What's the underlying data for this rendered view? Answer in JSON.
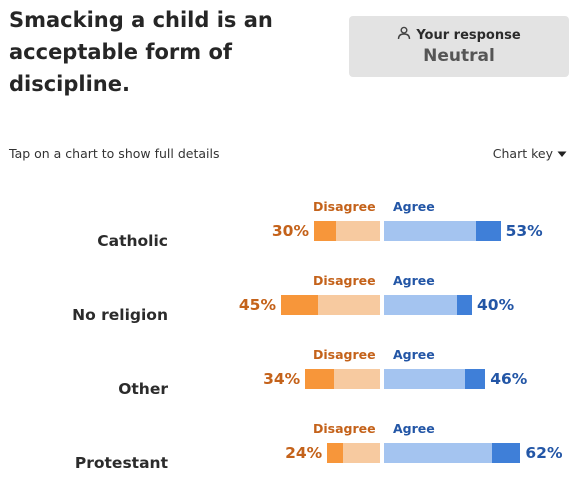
{
  "question": "Smacking a child is an acceptable form of discipline.",
  "your_response": {
    "label": "Your response",
    "value": "Neutral",
    "icon": "person-icon"
  },
  "instruction": "Tap on a chart to show full details",
  "chart_key": {
    "label": "Chart key",
    "icon": "caret-down-icon"
  },
  "colors": {
    "strong_disagree": "#f7963a",
    "disagree": "#f7caa0",
    "agree": "#a4c4f0",
    "strong_agree": "#3f7fd8",
    "disagree_text": "#c4621a",
    "agree_text": "#2356a6"
  },
  "rows": [
    {
      "label": "Catholic",
      "disagree_label": "Disagree",
      "agree_label": "Agree",
      "disagree_pct": "30%",
      "agree_pct": "53%",
      "disagree": 30,
      "strong_disagree": 10,
      "agree": 53,
      "strong_agree": 11
    },
    {
      "label": "No religion",
      "disagree_label": "Disagree",
      "agree_label": "Agree",
      "disagree_pct": "45%",
      "agree_pct": "40%",
      "disagree": 45,
      "strong_disagree": 17,
      "agree": 40,
      "strong_agree": 7
    },
    {
      "label": "Other",
      "disagree_label": "Disagree",
      "agree_label": "Agree",
      "disagree_pct": "34%",
      "agree_pct": "46%",
      "disagree": 34,
      "strong_disagree": 13,
      "agree": 46,
      "strong_agree": 9
    },
    {
      "label": "Protestant",
      "disagree_label": "Disagree",
      "agree_label": "Agree",
      "disagree_pct": "24%",
      "agree_pct": "62%",
      "disagree": 24,
      "strong_disagree": 7,
      "agree": 62,
      "strong_agree": 13
    }
  ]
}
